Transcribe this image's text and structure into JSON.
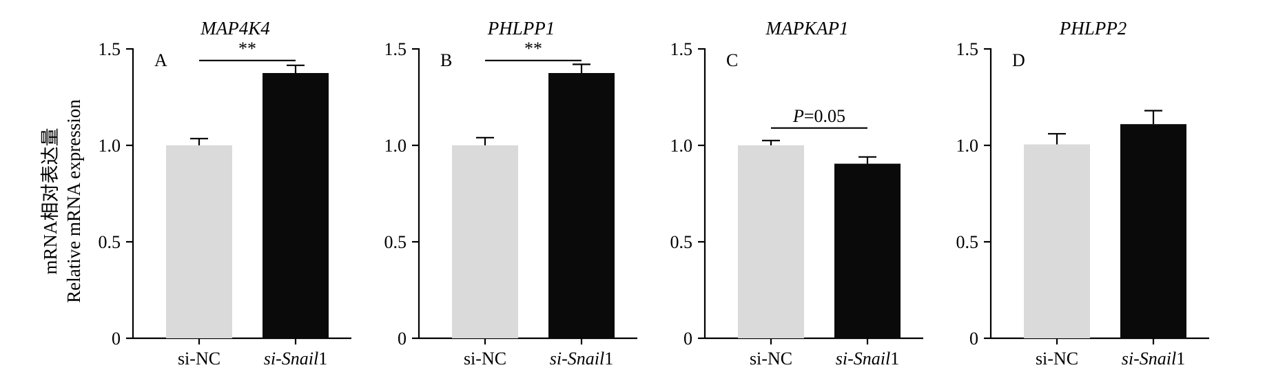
{
  "figure": {
    "ylabel_cn": "mRNA相对表达量",
    "ylabel_en": "Relative mRNA expression"
  },
  "colors": {
    "control": "#dadada",
    "treatment": "#0a0a0a",
    "axis": "#000000"
  },
  "chart_data": [
    {
      "type": "bar",
      "panel": "A",
      "title": "MAP4K4",
      "categories": [
        "si-NC",
        "si-Snail1"
      ],
      "category_parts": [
        [
          "si-NC",
          ""
        ],
        [
          "si-",
          "Snail",
          "1"
        ]
      ],
      "values": [
        1.0,
        1.375
      ],
      "errors": [
        0.035,
        0.04
      ],
      "ylim": [
        0,
        1.5
      ],
      "yticks": [
        0,
        0.5,
        1.0,
        1.5
      ],
      "ytick_labels": [
        "0",
        "0.5",
        "1.0",
        "1.5"
      ],
      "annotation": {
        "text": "**",
        "level": 1.44
      }
    },
    {
      "type": "bar",
      "panel": "B",
      "title": "PHLPP1",
      "categories": [
        "si-NC",
        "si-Snail1"
      ],
      "category_parts": [
        [
          "si-NC",
          ""
        ],
        [
          "si-",
          "Snail",
          "1"
        ]
      ],
      "values": [
        1.0,
        1.375
      ],
      "errors": [
        0.04,
        0.045
      ],
      "ylim": [
        0,
        1.5
      ],
      "yticks": [
        0,
        0.5,
        1.0,
        1.5
      ],
      "ytick_labels": [
        "0",
        "0.5",
        "1.0",
        "1.5"
      ],
      "annotation": {
        "text": "**",
        "level": 1.44
      }
    },
    {
      "type": "bar",
      "panel": "C",
      "title": "MAPKAP1",
      "categories": [
        "si-NC",
        "si-Snail1"
      ],
      "category_parts": [
        [
          "si-NC",
          ""
        ],
        [
          "si-",
          "Snail",
          "1"
        ]
      ],
      "values": [
        1.0,
        0.905
      ],
      "errors": [
        0.025,
        0.035
      ],
      "ylim": [
        0,
        1.5
      ],
      "yticks": [
        0,
        0.5,
        1.0,
        1.5
      ],
      "ytick_labels": [
        "0",
        "0.5",
        "1.0",
        "1.5"
      ],
      "annotation": {
        "text_italic": "P",
        "text": "=0.05",
        "level": 1.09
      }
    },
    {
      "type": "bar",
      "panel": "D",
      "title": "PHLPP2",
      "categories": [
        "si-NC",
        "si-Snail1"
      ],
      "category_parts": [
        [
          "si-NC",
          ""
        ],
        [
          "si-",
          "Snail",
          "1"
        ]
      ],
      "values": [
        1.005,
        1.11
      ],
      "errors": [
        0.055,
        0.07
      ],
      "ylim": [
        0,
        1.5
      ],
      "yticks": [
        0,
        0.5,
        1.0,
        1.5
      ],
      "ytick_labels": [
        "0",
        "0.5",
        "1.0",
        "1.5"
      ],
      "annotation": null
    }
  ]
}
